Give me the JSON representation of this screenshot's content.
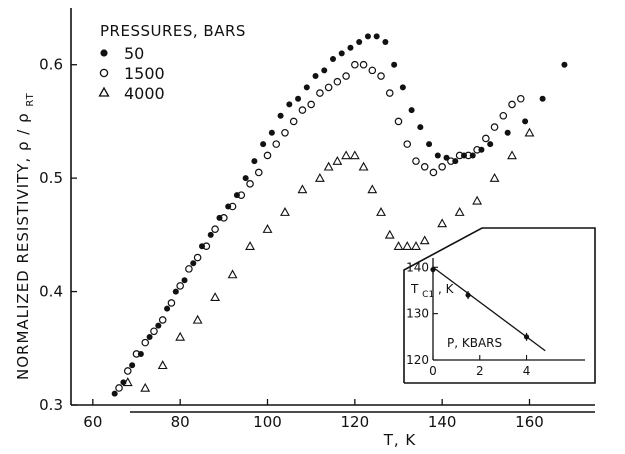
{
  "chart_data": [
    {
      "type": "scatter",
      "xlabel": "T, K",
      "ylabel": "NORMALIZED RESISTIVITY, ρ / ρ",
      "ylabel_sub": "RT",
      "xlim": [
        55,
        175
      ],
      "ylim": [
        0.3,
        0.65
      ],
      "x_ticks": [
        60,
        80,
        100,
        120,
        140,
        160
      ],
      "y_ticks": [
        0.3,
        0.4,
        0.5,
        0.6
      ],
      "x_tick_labels": [
        "60",
        "80",
        "100",
        "120",
        "140",
        "160"
      ],
      "y_tick_labels": [
        "0.3",
        "0.4",
        "0.5",
        "0.6"
      ],
      "grid": false,
      "legend_title": "PRESSURES, BARS",
      "legend_position": "top-left",
      "series": [
        {
          "name": "50",
          "marker": "filled-circle",
          "x": [
            65,
            67,
            69,
            71,
            73,
            75,
            77,
            79,
            81,
            83,
            85,
            87,
            89,
            91,
            93,
            95,
            97,
            99,
            101,
            103,
            105,
            107,
            109,
            111,
            113,
            115,
            117,
            119,
            121,
            123,
            125,
            127,
            129,
            131,
            133,
            135,
            137,
            139,
            141,
            143,
            145,
            147,
            149,
            151,
            155,
            159,
            163,
            168
          ],
          "y": [
            0.31,
            0.32,
            0.335,
            0.345,
            0.36,
            0.37,
            0.385,
            0.4,
            0.41,
            0.425,
            0.44,
            0.45,
            0.465,
            0.475,
            0.485,
            0.5,
            0.515,
            0.53,
            0.54,
            0.555,
            0.565,
            0.57,
            0.58,
            0.59,
            0.595,
            0.605,
            0.61,
            0.615,
            0.62,
            0.625,
            0.625,
            0.62,
            0.6,
            0.58,
            0.56,
            0.545,
            0.53,
            0.52,
            0.518,
            0.515,
            0.52,
            0.52,
            0.525,
            0.53,
            0.54,
            0.55,
            0.57,
            0.6
          ]
        },
        {
          "name": "1500",
          "marker": "open-circle",
          "x": [
            66,
            68,
            70,
            72,
            74,
            76,
            78,
            80,
            82,
            84,
            86,
            88,
            90,
            92,
            94,
            96,
            98,
            100,
            102,
            104,
            106,
            108,
            110,
            112,
            114,
            116,
            118,
            120,
            122,
            124,
            126,
            128,
            130,
            132,
            134,
            136,
            138,
            140,
            142,
            144,
            146,
            148,
            150,
            152,
            154,
            156,
            158
          ],
          "y": [
            0.315,
            0.33,
            0.345,
            0.355,
            0.365,
            0.375,
            0.39,
            0.405,
            0.42,
            0.43,
            0.44,
            0.455,
            0.465,
            0.475,
            0.485,
            0.495,
            0.505,
            0.52,
            0.53,
            0.54,
            0.55,
            0.56,
            0.565,
            0.575,
            0.58,
            0.585,
            0.59,
            0.6,
            0.6,
            0.595,
            0.59,
            0.575,
            0.55,
            0.53,
            0.515,
            0.51,
            0.505,
            0.51,
            0.515,
            0.52,
            0.52,
            0.525,
            0.535,
            0.545,
            0.555,
            0.565,
            0.57
          ]
        },
        {
          "name": "4000",
          "marker": "open-triangle",
          "x": [
            68,
            72,
            76,
            80,
            84,
            88,
            92,
            96,
            100,
            104,
            108,
            112,
            114,
            116,
            118,
            120,
            122,
            124,
            126,
            128,
            130,
            132,
            134,
            136,
            140,
            144,
            148,
            152,
            156,
            160
          ],
          "y": [
            0.32,
            0.315,
            0.335,
            0.36,
            0.375,
            0.395,
            0.415,
            0.44,
            0.455,
            0.47,
            0.49,
            0.5,
            0.51,
            0.515,
            0.52,
            0.52,
            0.51,
            0.49,
            0.47,
            0.45,
            0.44,
            0.44,
            0.44,
            0.445,
            0.46,
            0.47,
            0.48,
            0.5,
            0.52,
            0.54
          ]
        }
      ]
    },
    {
      "type": "scatter",
      "xlabel": "P, KBARS",
      "ylabel": "T",
      "ylabel_sub": "C1",
      "ylabel_suffix": ", K",
      "xlim": [
        -1,
        7.5
      ],
      "ylim": [
        120,
        142
      ],
      "x_ticks": [
        0,
        2,
        4
      ],
      "y_ticks": [
        120,
        130,
        140
      ],
      "x_tick_labels": [
        "0",
        "2",
        "4"
      ],
      "y_tick_labels": [
        "120",
        "130",
        "140"
      ],
      "grid": false,
      "points": {
        "x": [
          0,
          1.5,
          4
        ],
        "y": [
          139.5,
          134,
          125
        ]
      },
      "fit_line": {
        "x": [
          0,
          4.8
        ],
        "y": [
          140,
          122
        ]
      }
    }
  ]
}
